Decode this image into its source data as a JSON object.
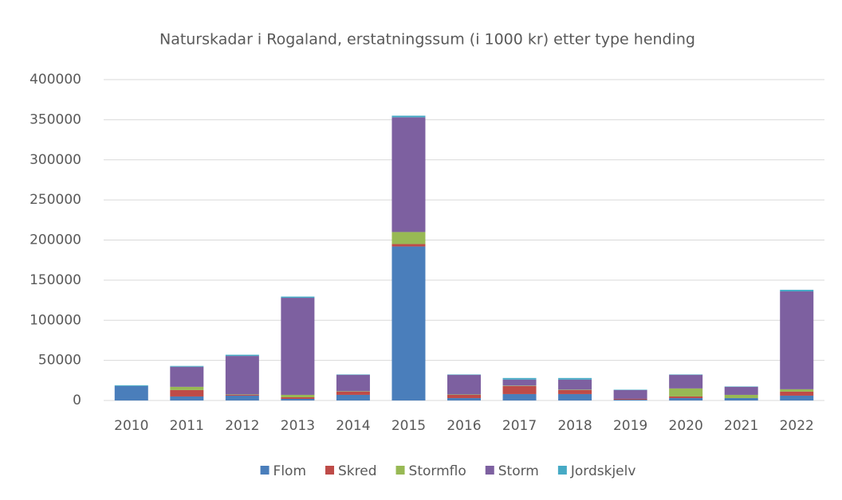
{
  "chart_data": {
    "type": "bar",
    "stacked": true,
    "title": "Naturskadar i Rogaland, erstatningssum (i 1000 kr) etter type hending",
    "categories": [
      "2010",
      "2011",
      "2012",
      "2013",
      "2014",
      "2015",
      "2016",
      "2017",
      "2018",
      "2019",
      "2020",
      "2021",
      "2022"
    ],
    "series": [
      {
        "name": "Flom",
        "color": "#4a7ebb",
        "values": [
          18000,
          5000,
          6000,
          2000,
          7000,
          192000,
          3000,
          8000,
          8000,
          1000,
          3000,
          3000,
          6000
        ]
      },
      {
        "name": "Skred",
        "color": "#be4b48",
        "values": [
          0,
          8000,
          1000,
          2000,
          4000,
          3000,
          4000,
          10000,
          5000,
          1000,
          2000,
          0,
          5000
        ]
      },
      {
        "name": "Stormflo",
        "color": "#98b954",
        "values": [
          0,
          4000,
          500,
          3000,
          500,
          15000,
          500,
          500,
          500,
          0,
          10000,
          4000,
          3000
        ]
      },
      {
        "name": "Storm",
        "color": "#7d60a0",
        "values": [
          0,
          25000,
          48000,
          121000,
          20500,
          143000,
          24500,
          7500,
          12500,
          11000,
          17000,
          10000,
          122000
        ]
      },
      {
        "name": "Jordskjelv",
        "color": "#46aac5",
        "values": [
          1000,
          1000,
          1500,
          1500,
          500,
          2000,
          500,
          2000,
          2000,
          500,
          500,
          500,
          2000
        ]
      }
    ],
    "ylim": [
      0,
      400000
    ],
    "yticks": [
      0,
      50000,
      100000,
      150000,
      200000,
      250000,
      300000,
      350000,
      400000
    ],
    "grid": true,
    "legend": "bottom"
  }
}
